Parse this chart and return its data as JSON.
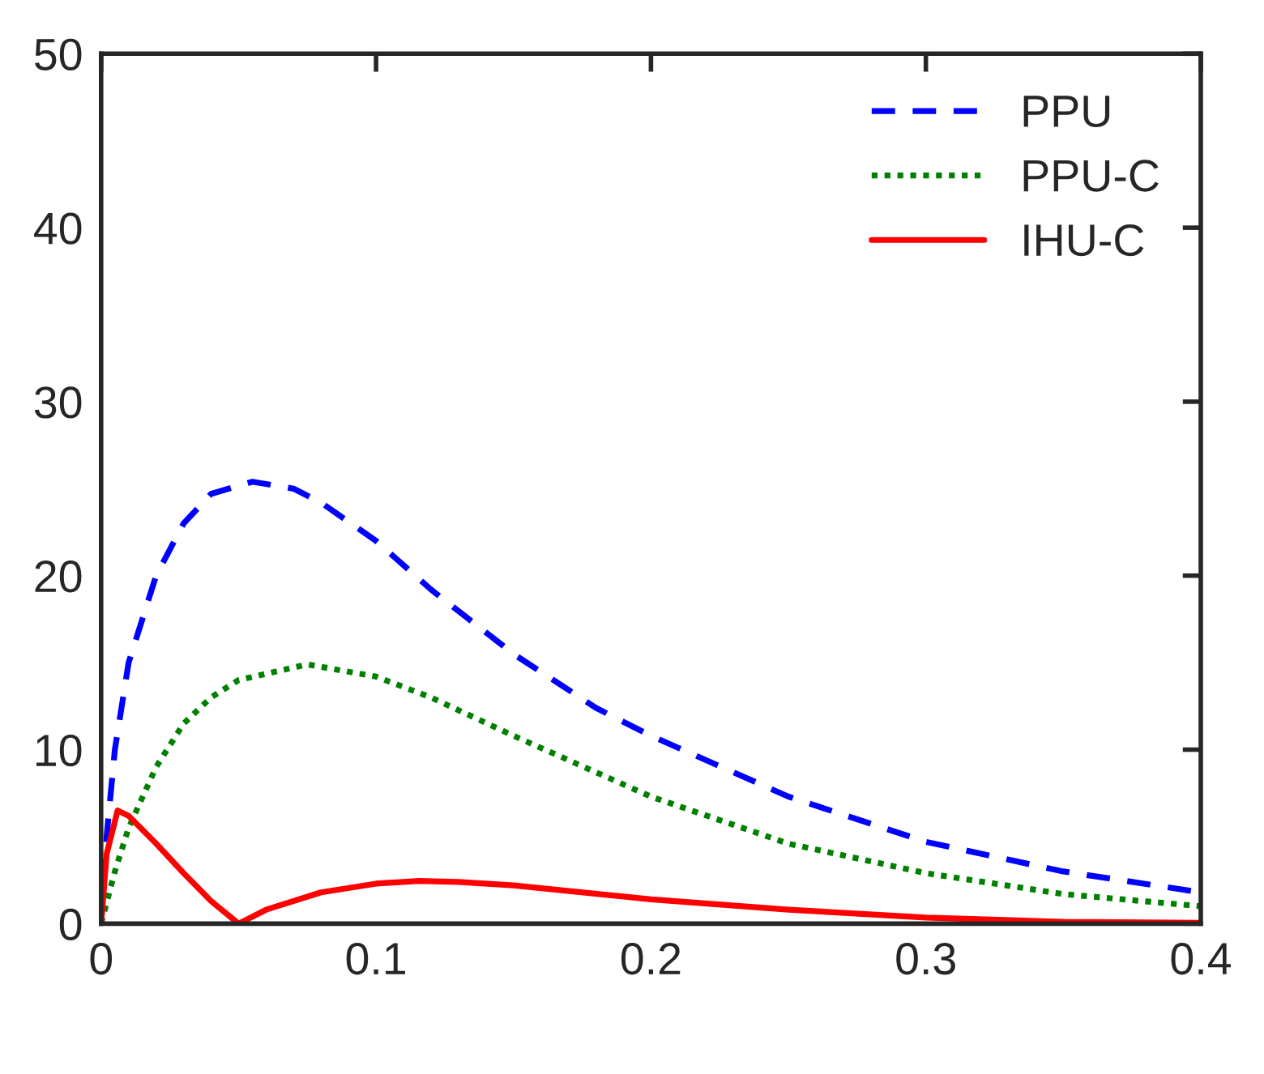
{
  "chart_data": {
    "type": "line",
    "xlim": [
      0,
      0.4
    ],
    "ylim": [
      0,
      50
    ],
    "xticks": [
      0,
      0.1,
      0.2,
      0.3,
      0.4
    ],
    "yticks": [
      0,
      10,
      20,
      30,
      40,
      50
    ],
    "legend": "top right",
    "grid": false,
    "series": [
      {
        "name": "PPU",
        "color": "#0000ff",
        "line_style": "dashed",
        "x": [
          0,
          0.002,
          0.005,
          0.01,
          0.02,
          0.03,
          0.04,
          0.055,
          0.07,
          0.08,
          0.1,
          0.12,
          0.15,
          0.18,
          0.2,
          0.25,
          0.3,
          0.35,
          0.4
        ],
        "values": [
          0,
          5,
          10,
          15,
          20,
          23,
          24.7,
          25.4,
          25,
          24.2,
          22,
          19.2,
          15.5,
          12.4,
          10.8,
          7.3,
          4.7,
          3,
          1.8
        ]
      },
      {
        "name": "PPU-C",
        "color": "#008000",
        "line_style": "dotted",
        "x": [
          0,
          0.005,
          0.01,
          0.02,
          0.03,
          0.04,
          0.05,
          0.075,
          0.1,
          0.12,
          0.15,
          0.2,
          0.25,
          0.3,
          0.35,
          0.4
        ],
        "values": [
          0,
          3,
          5.5,
          9,
          11.5,
          13,
          14,
          14.9,
          14.2,
          13,
          10.8,
          7.3,
          4.6,
          2.9,
          1.7,
          1
        ]
      },
      {
        "name": "IHU-C",
        "color": "#ff0000",
        "line_style": "solid",
        "x": [
          0,
          0.002,
          0.006,
          0.01,
          0.02,
          0.03,
          0.04,
          0.05,
          0.06,
          0.08,
          0.1,
          0.115,
          0.13,
          0.15,
          0.2,
          0.25,
          0.3,
          0.35,
          0.4
        ],
        "values": [
          0,
          4,
          6.5,
          6.2,
          4.6,
          2.9,
          1.3,
          0,
          0.8,
          1.8,
          2.3,
          2.45,
          2.4,
          2.2,
          1.4,
          0.8,
          0.35,
          0.1,
          0.05
        ]
      }
    ]
  }
}
